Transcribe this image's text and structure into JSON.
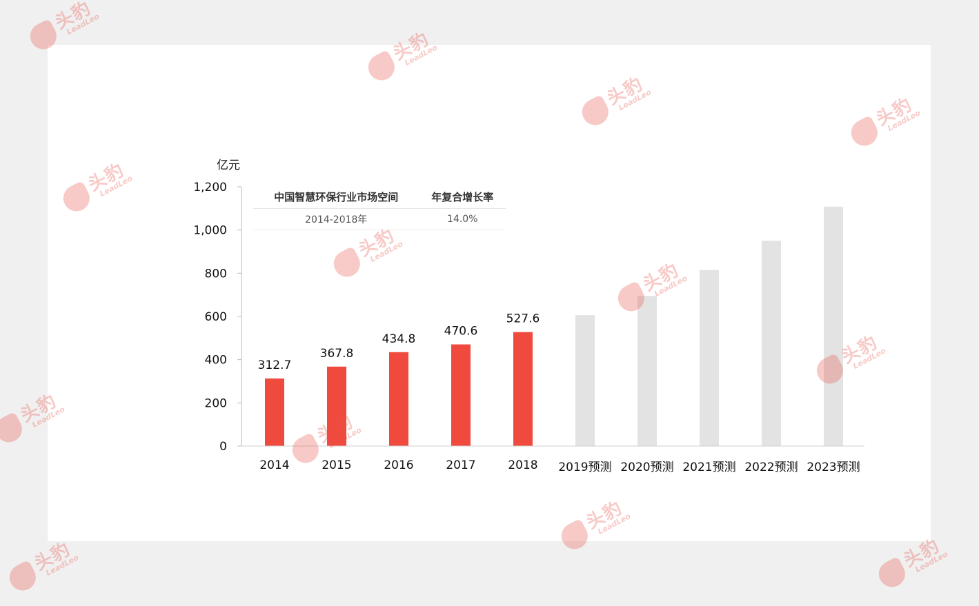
{
  "chart_data": {
    "type": "bar",
    "unit_label": "亿元",
    "categories": [
      "2014",
      "2015",
      "2016",
      "2017",
      "2018",
      "2019预测",
      "2020预测",
      "2021预测",
      "2022预测",
      "2023预测"
    ],
    "values": [
      312.7,
      367.8,
      434.8,
      470.6,
      527.6,
      606,
      695,
      815,
      950,
      1108
    ],
    "data_labels": [
      "312.7",
      "367.8",
      "434.8",
      "470.6",
      "527.6",
      "",
      "",
      "",
      "",
      ""
    ],
    "yticks": [
      "0",
      "200",
      "400",
      "600",
      "800",
      "1,000",
      "1,200"
    ],
    "ylim": [
      0,
      1200
    ],
    "colors": {
      "actual": "#f04a3e",
      "forecast": "#e3e3e3"
    },
    "actual_count": 5
  },
  "table": {
    "headers": [
      "中国智慧环保行业市场空间",
      "年复合增长率"
    ],
    "rows": [
      [
        "2014-2018年",
        "14.0%"
      ]
    ]
  },
  "watermark": {
    "cn": "头豹",
    "en": "LeadLeo"
  }
}
